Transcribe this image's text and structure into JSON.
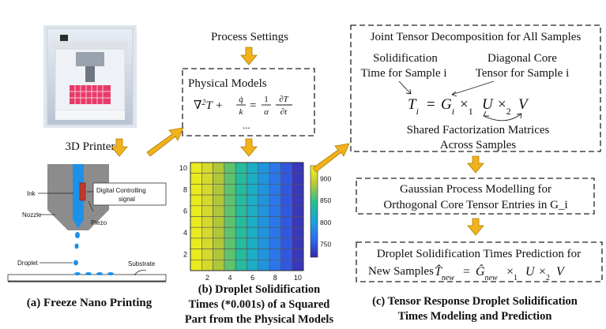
{
  "printer": {
    "caption": "3D Printer"
  },
  "nozzle": {
    "ink": "Ink",
    "nozzle": "Nozzle",
    "piezo": "Piezo",
    "digital_line1": "Digital Controlling",
    "digital_line2": "signal",
    "droplet": "Droplet",
    "substrate": "Substrate",
    "caption": "(a) Freeze Nano Printing"
  },
  "middle": {
    "process_settings": "Process Settings",
    "physical_models": "Physical Models",
    "eq_ellipsis": "...",
    "caption_line1": "(b) Droplet Solidification",
    "caption_line2": "Times (*0.001s) of a Squared",
    "caption_line3": "Part from the Physical Models"
  },
  "right": {
    "box1_title": "Joint Tensor Decomposition for All Samples",
    "label_solid_line1": "Solidification",
    "label_solid_line2": "Time for Sample i",
    "label_core_line1": "Diagonal Core",
    "label_core_line2": "Tensor for Sample i",
    "shared_line1": "Shared Factorization Matrices",
    "shared_line2": "Across Samples",
    "box2_line1": "Gaussian Process Modelling for",
    "box2_line2": "Orthogonal Core Tensor Entries in G_i",
    "box3_line1": "Droplet Solidification Times Prediction for",
    "box3_line2": "New Samples",
    "caption_line1": "(c) Tensor Response Droplet Solidification",
    "caption_line2": "Times Modeling and Prediction"
  },
  "colors": {
    "arrow": "#f2b21c",
    "arrow_stroke": "#b07a00",
    "nozzle_grey": "#8c8c8c",
    "ink_blue": "#1e90e8",
    "piezo_red": "#c0392b",
    "dash": "#222222"
  },
  "chart_data": {
    "type": "heatmap",
    "x_ticks": [
      2,
      4,
      6,
      8,
      10
    ],
    "y_ticks": [
      2,
      4,
      6,
      8,
      10
    ],
    "x_range": [
      1,
      10
    ],
    "y_range": [
      1,
      10
    ],
    "colorbar_ticks": [
      750,
      800,
      850,
      900
    ],
    "color_range": [
      720,
      930
    ],
    "colormap": "parula",
    "columns": 10,
    "rows": 10,
    "column_values": [
      920,
      905,
      885,
      862,
      838,
      815,
      792,
      770,
      750,
      730
    ]
  }
}
